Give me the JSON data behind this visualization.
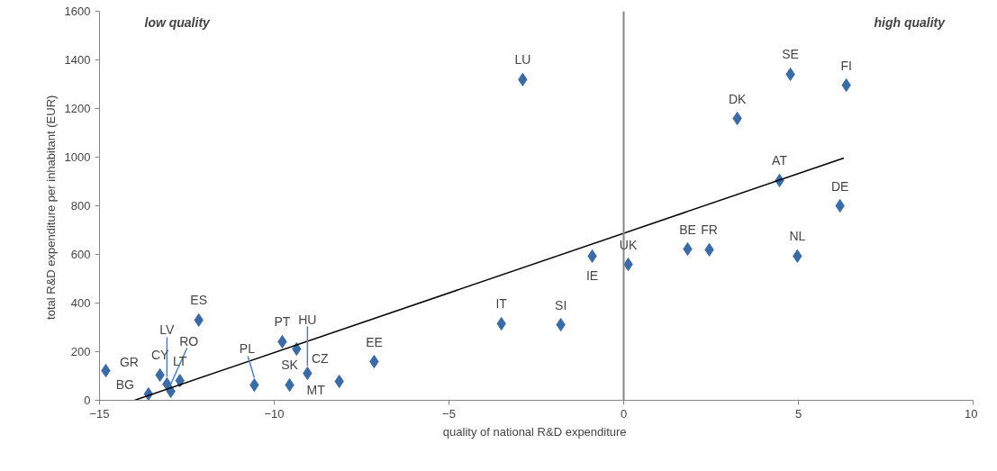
{
  "chart_data": {
    "type": "scatter",
    "xlabel": "quality of national  R&D expenditure",
    "ylabel": "total R&D expenditure per inhabitant  (EUR)",
    "xlim": [
      -15,
      10
    ],
    "ylim": [
      0,
      1600
    ],
    "xticks": [
      -15,
      -10,
      -5,
      0,
      5,
      10
    ],
    "yticks": [
      0,
      200,
      400,
      600,
      800,
      1000,
      1200,
      1400,
      1600
    ],
    "grid": false,
    "marker": "diamond",
    "series": [
      {
        "color": "#3a6ba5",
        "x": [
          -14.82,
          -13.6,
          -13.27,
          -13.07,
          -12.96,
          -12.7,
          -12.16,
          -10.57,
          -9.77,
          -9.36,
          -9.56,
          -9.05,
          -8.14,
          -7.14,
          -3.5,
          -1.8,
          -2.89,
          -0.9,
          0.13,
          1.83,
          2.45,
          3.25,
          4.46,
          4.77,
          6.37,
          6.19,
          4.97
        ],
        "values": [
          122,
          26,
          104,
          67,
          37,
          81,
          330,
          63,
          241,
          211,
          63,
          111,
          78,
          159,
          315,
          311,
          1319,
          593,
          559,
          622,
          619,
          1159,
          904,
          1341,
          1296,
          800,
          593
        ]
      },
      {
        "type": "line",
        "color": "#000000",
        "x": [
          -14.0,
          6.3
        ],
        "values": [
          0,
          996
        ],
        "marker": "none"
      }
    ],
    "ref_lines": [
      {
        "axis": "x",
        "value": 0,
        "color": "#868686"
      }
    ],
    "annotations": [
      "low quality",
      "high quality",
      {
        "text": "GR",
        "x": -14.82,
        "y": 122
      },
      {
        "text": "BG",
        "x": -13.6,
        "y": 26
      },
      {
        "text": "CY",
        "x": -13.27,
        "y": 104
      },
      {
        "text": "LV",
        "x": -13.07,
        "y": 67
      },
      {
        "text": "RO",
        "x": -12.96,
        "y": 37
      },
      {
        "text": "LT",
        "x": -12.7,
        "y": 81
      },
      {
        "text": "ES",
        "x": -12.16,
        "y": 330
      },
      {
        "text": "PL",
        "x": -10.57,
        "y": 63
      },
      {
        "text": "PT",
        "x": -9.77,
        "y": 241
      },
      {
        "text": "CZ",
        "x": -9.36,
        "y": 211
      },
      {
        "text": "SK",
        "x": -9.56,
        "y": 63
      },
      {
        "text": "HU",
        "x": -9.05,
        "y": 111
      },
      {
        "text": "MT",
        "x": -8.14,
        "y": 78
      },
      {
        "text": "EE",
        "x": -7.14,
        "y": 159
      },
      {
        "text": "IT",
        "x": -3.5,
        "y": 315
      },
      {
        "text": "SI",
        "x": -1.8,
        "y": 311
      },
      {
        "text": "LU",
        "x": -2.89,
        "y": 1319
      },
      {
        "text": "IE",
        "x": -0.9,
        "y": 593
      },
      {
        "text": "UK",
        "x": 0.13,
        "y": 559
      },
      {
        "text": "BE",
        "x": 1.83,
        "y": 622
      },
      {
        "text": "FR",
        "x": 2.45,
        "y": 619
      },
      {
        "text": "DK",
        "x": 3.25,
        "y": 1159
      },
      {
        "text": "AT",
        "x": 4.46,
        "y": 904
      },
      {
        "text": "SE",
        "x": 4.77,
        "y": 1341
      },
      {
        "text": "FI",
        "x": 6.37,
        "y": 1296
      },
      {
        "text": "DE",
        "x": 6.19,
        "y": 800
      },
      {
        "text": "NL",
        "x": 4.97,
        "y": 593
      }
    ]
  }
}
